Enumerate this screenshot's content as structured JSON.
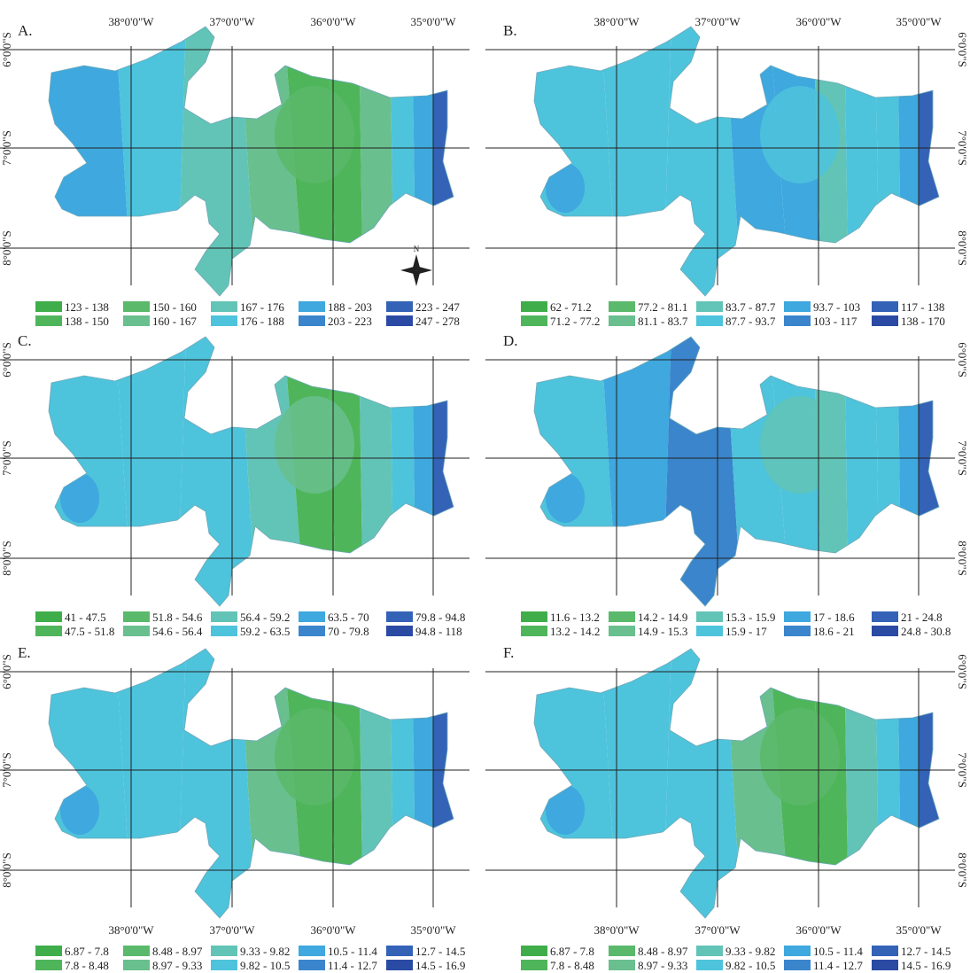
{
  "panels": [
    {
      "label": "A.",
      "legend": [
        {
          "range": "123 - 138",
          "color": "#3fae4a"
        },
        {
          "range": "138 - 150",
          "color": "#4fb55a"
        },
        {
          "range": "150 - 160",
          "color": "#5ab96a"
        },
        {
          "range": "160 - 167",
          "color": "#69bf8e"
        },
        {
          "range": "167 - 176",
          "color": "#62c4b6"
        },
        {
          "range": "176 - 188",
          "color": "#4ec3dc"
        },
        {
          "range": "188 - 203",
          "color": "#3ea8df"
        },
        {
          "range": "203 - 223",
          "color": "#3a85cc"
        },
        {
          "range": "223 - 247",
          "color": "#3462b7"
        },
        {
          "range": "247 - 278",
          "color": "#2a4aa4"
        }
      ],
      "regions": [
        0.62,
        0.55,
        0.4,
        0.32,
        0.12,
        0.08,
        0.35,
        0.55,
        0.72,
        0.92
      ]
    },
    {
      "label": "B.",
      "legend": [
        {
          "range": "62 - 71.2",
          "color": "#3fae4a"
        },
        {
          "range": "71.2 - 77.2",
          "color": "#4fb55a"
        },
        {
          "range": "77.2 - 81.1",
          "color": "#5ab96a"
        },
        {
          "range": "81.1 - 83.7",
          "color": "#69bf8e"
        },
        {
          "range": "83.7 - 87.7",
          "color": "#62c4b6"
        },
        {
          "range": "87.7 - 93.7",
          "color": "#4ec3dc"
        },
        {
          "range": "93.7 - 103",
          "color": "#3ea8df"
        },
        {
          "range": "103 - 117",
          "color": "#3a85cc"
        },
        {
          "range": "117 - 138",
          "color": "#3462b7"
        },
        {
          "range": "138 - 170",
          "color": "#2a4aa4"
        }
      ],
      "regions": [
        0.55,
        0.55,
        0.55,
        0.62,
        0.72,
        0.48,
        0.5,
        0.55,
        0.72,
        0.92
      ]
    },
    {
      "label": "C.",
      "legend": [
        {
          "range": "41 - 47.5",
          "color": "#3fae4a"
        },
        {
          "range": "47.5 - 51.8",
          "color": "#4fb55a"
        },
        {
          "range": "51.8 - 54.6",
          "color": "#5ab96a"
        },
        {
          "range": "54.6 - 56.4",
          "color": "#69bf8e"
        },
        {
          "range": "56.4 - 59.2",
          "color": "#62c4b6"
        },
        {
          "range": "59.2 - 63.5",
          "color": "#4ec3dc"
        },
        {
          "range": "63.5 - 70",
          "color": "#3ea8df"
        },
        {
          "range": "70 - 79.8",
          "color": "#3a85cc"
        },
        {
          "range": "79.8 - 94.8",
          "color": "#3462b7"
        },
        {
          "range": "94.8 - 118",
          "color": "#2a4aa4"
        }
      ],
      "regions": [
        0.55,
        0.55,
        0.5,
        0.4,
        0.15,
        0.1,
        0.4,
        0.55,
        0.72,
        0.92
      ]
    },
    {
      "label": "D.",
      "legend": [
        {
          "range": "11.6 - 13.2",
          "color": "#3fae4a"
        },
        {
          "range": "13.2 - 14.2",
          "color": "#4fb55a"
        },
        {
          "range": "14.2 - 14.9",
          "color": "#5ab96a"
        },
        {
          "range": "14.9 - 15.3",
          "color": "#69bf8e"
        },
        {
          "range": "15.3 - 15.9",
          "color": "#62c4b6"
        },
        {
          "range": "15.9 - 17",
          "color": "#4ec3dc"
        },
        {
          "range": "17 - 18.6",
          "color": "#3ea8df"
        },
        {
          "range": "18.6 - 21",
          "color": "#3a85cc"
        },
        {
          "range": "21 - 24.8",
          "color": "#3462b7"
        },
        {
          "range": "24.8 - 30.8",
          "color": "#2a4aa4"
        }
      ],
      "regions": [
        0.55,
        0.72,
        0.75,
        0.6,
        0.5,
        0.4,
        0.5,
        0.55,
        0.72,
        0.92
      ]
    },
    {
      "label": "E.",
      "legend": [
        {
          "range": "6.87 - 7.8",
          "color": "#3fae4a"
        },
        {
          "range": "7.8 - 8.48",
          "color": "#4fb55a"
        },
        {
          "range": "8.48 - 8.97",
          "color": "#5ab96a"
        },
        {
          "range": "8.97 - 9.33",
          "color": "#69bf8e"
        },
        {
          "range": "9.33 - 9.82",
          "color": "#62c4b6"
        },
        {
          "range": "9.82 - 10.5",
          "color": "#4ec3dc"
        },
        {
          "range": "10.5 - 11.4",
          "color": "#3ea8df"
        },
        {
          "range": "11.4 - 12.7",
          "color": "#3a85cc"
        },
        {
          "range": "12.7 - 14.5",
          "color": "#3462b7"
        },
        {
          "range": "14.5 - 16.9",
          "color": "#2a4aa4"
        }
      ],
      "regions": [
        0.55,
        0.55,
        0.5,
        0.38,
        0.15,
        0.1,
        0.4,
        0.55,
        0.72,
        0.92
      ]
    },
    {
      "label": "F.",
      "legend": [
        {
          "range": "6.87 - 7.8",
          "color": "#3fae4a"
        },
        {
          "range": "7.8 - 8.48",
          "color": "#4fb55a"
        },
        {
          "range": "8.48 - 8.97",
          "color": "#5ab96a"
        },
        {
          "range": "8.97 - 9.33",
          "color": "#69bf8e"
        },
        {
          "range": "9.33 - 9.82",
          "color": "#62c4b6"
        },
        {
          "range": "9.82 - 10.5",
          "color": "#4ec3dc"
        },
        {
          "range": "10.5 - 11.4",
          "color": "#3ea8df"
        },
        {
          "range": "11.4 - 12.7",
          "color": "#3a85cc"
        },
        {
          "range": "12.7 - 14.5",
          "color": "#3462b7"
        },
        {
          "range": "14.5 - 16.9",
          "color": "#2a4aa4"
        }
      ],
      "regions": [
        0.55,
        0.55,
        0.5,
        0.38,
        0.15,
        0.1,
        0.4,
        0.55,
        0.72,
        0.92
      ]
    }
  ],
  "longitude_labels": [
    "38°0'0\"W",
    "37°0'0\"W",
    "36°0'0\"W",
    "35°0'0\"W"
  ],
  "latitude_labels": [
    "6°0'0\"S",
    "7°0'0\"S",
    "8°0'0\"S"
  ],
  "north_arrow_label": "N"
}
